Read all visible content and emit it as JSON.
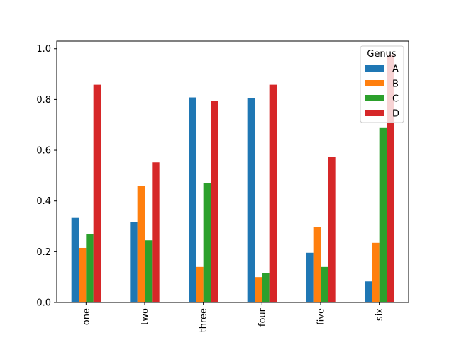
{
  "chart_data": {
    "type": "bar",
    "title": "",
    "xlabel": "",
    "ylabel": "",
    "ylim": [
      0,
      1.03
    ],
    "yticks": [
      0.0,
      0.2,
      0.4,
      0.6,
      0.8,
      1.0
    ],
    "ytick_labels": [
      "0.0",
      "0.2",
      "0.4",
      "0.6",
      "0.8",
      "1.0"
    ],
    "categories": [
      "one",
      "two",
      "three",
      "four",
      "five",
      "six"
    ],
    "legend": {
      "title": "Genus",
      "placement": "top-right"
    },
    "series": [
      {
        "name": "A",
        "color": "#1f77b4",
        "values": [
          0.333,
          0.318,
          0.808,
          0.804,
          0.196,
          0.083
        ]
      },
      {
        "name": "B",
        "color": "#ff7f0e",
        "values": [
          0.215,
          0.46,
          0.14,
          0.1,
          0.298,
          0.235
        ]
      },
      {
        "name": "C",
        "color": "#2ca02c",
        "values": [
          0.27,
          0.245,
          0.47,
          0.115,
          0.14,
          0.69
        ]
      },
      {
        "name": "D",
        "color": "#d62728",
        "values": [
          0.858,
          0.552,
          0.793,
          0.858,
          0.575,
          0.975
        ]
      }
    ]
  }
}
